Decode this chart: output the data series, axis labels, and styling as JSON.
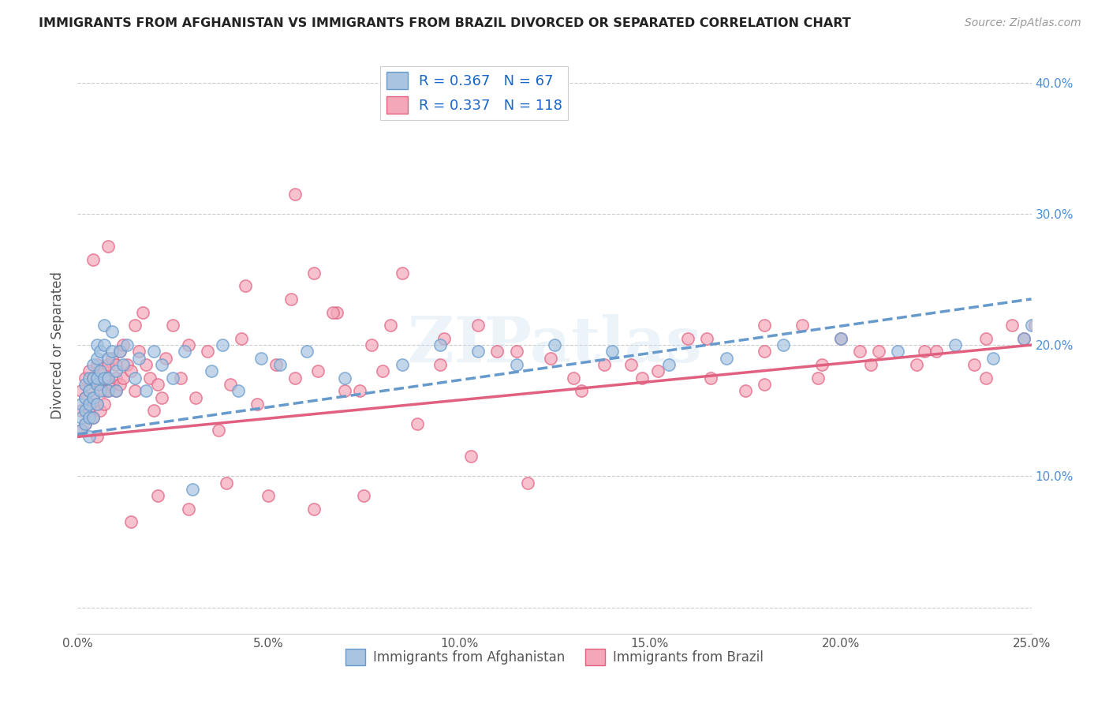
{
  "title": "IMMIGRANTS FROM AFGHANISTAN VS IMMIGRANTS FROM BRAZIL DIVORCED OR SEPARATED CORRELATION CHART",
  "source": "Source: ZipAtlas.com",
  "ylabel": "Divorced or Separated",
  "xlim": [
    0.0,
    0.25
  ],
  "ylim": [
    -0.02,
    0.42
  ],
  "xticks": [
    0.0,
    0.05,
    0.1,
    0.15,
    0.2,
    0.25
  ],
  "yticks": [
    0.0,
    0.1,
    0.2,
    0.3,
    0.4
  ],
  "xtick_labels": [
    "0.0%",
    "5.0%",
    "10.0%",
    "15.0%",
    "20.0%",
    "25.0%"
  ],
  "ytick_right_labels": [
    "",
    "10.0%",
    "20.0%",
    "30.0%",
    "40.0%"
  ],
  "afghanistan_color": "#a8c4e0",
  "brazil_color": "#f4a7b9",
  "afghanistan_edge": "#6699cc",
  "brazil_edge": "#e06080",
  "afghanistan_R": 0.367,
  "afghanistan_N": 67,
  "brazil_R": 0.337,
  "brazil_N": 118,
  "trendline_afghanistan_color": "#6699cc",
  "trendline_brazil_color": "#e06080",
  "watermark": "ZIPatlas",
  "legend_label_1": "Immigrants from Afghanistan",
  "legend_label_2": "Immigrants from Brazil",
  "afghanistan_x": [
    0.001,
    0.001,
    0.001,
    0.002,
    0.002,
    0.002,
    0.002,
    0.003,
    0.003,
    0.003,
    0.003,
    0.003,
    0.004,
    0.004,
    0.004,
    0.004,
    0.005,
    0.005,
    0.005,
    0.005,
    0.005,
    0.006,
    0.006,
    0.006,
    0.007,
    0.007,
    0.007,
    0.008,
    0.008,
    0.008,
    0.009,
    0.009,
    0.01,
    0.01,
    0.011,
    0.012,
    0.013,
    0.015,
    0.016,
    0.018,
    0.02,
    0.022,
    0.025,
    0.028,
    0.03,
    0.035,
    0.038,
    0.042,
    0.048,
    0.053,
    0.06,
    0.07,
    0.085,
    0.095,
    0.105,
    0.115,
    0.125,
    0.14,
    0.155,
    0.17,
    0.185,
    0.2,
    0.215,
    0.23,
    0.24,
    0.248,
    0.25
  ],
  "afghanistan_y": [
    0.145,
    0.155,
    0.135,
    0.16,
    0.14,
    0.15,
    0.17,
    0.13,
    0.155,
    0.175,
    0.165,
    0.145,
    0.175,
    0.16,
    0.185,
    0.145,
    0.19,
    0.17,
    0.155,
    0.2,
    0.175,
    0.195,
    0.165,
    0.18,
    0.2,
    0.175,
    0.215,
    0.19,
    0.165,
    0.175,
    0.195,
    0.21,
    0.18,
    0.165,
    0.195,
    0.185,
    0.2,
    0.175,
    0.19,
    0.165,
    0.195,
    0.185,
    0.175,
    0.195,
    0.09,
    0.18,
    0.2,
    0.165,
    0.19,
    0.185,
    0.195,
    0.175,
    0.185,
    0.2,
    0.195,
    0.185,
    0.2,
    0.195,
    0.185,
    0.19,
    0.2,
    0.205,
    0.195,
    0.2,
    0.19,
    0.205,
    0.215
  ],
  "brazil_x": [
    0.001,
    0.001,
    0.001,
    0.002,
    0.002,
    0.002,
    0.003,
    0.003,
    0.003,
    0.004,
    0.004,
    0.004,
    0.005,
    0.005,
    0.005,
    0.005,
    0.006,
    0.006,
    0.007,
    0.007,
    0.007,
    0.008,
    0.008,
    0.008,
    0.009,
    0.009,
    0.01,
    0.01,
    0.01,
    0.011,
    0.011,
    0.012,
    0.012,
    0.013,
    0.014,
    0.015,
    0.015,
    0.016,
    0.017,
    0.018,
    0.019,
    0.02,
    0.021,
    0.022,
    0.023,
    0.025,
    0.027,
    0.029,
    0.031,
    0.034,
    0.037,
    0.04,
    0.043,
    0.047,
    0.052,
    0.057,
    0.063,
    0.07,
    0.077,
    0.085,
    0.095,
    0.105,
    0.115,
    0.13,
    0.145,
    0.16,
    0.175,
    0.19,
    0.205,
    0.22,
    0.235,
    0.248,
    0.252,
    0.245,
    0.238,
    0.225,
    0.21,
    0.195,
    0.18,
    0.165,
    0.148,
    0.132,
    0.118,
    0.103,
    0.089,
    0.075,
    0.062,
    0.05,
    0.039,
    0.029,
    0.021,
    0.014,
    0.008,
    0.004,
    0.044,
    0.056,
    0.068,
    0.082,
    0.096,
    0.11,
    0.124,
    0.138,
    0.152,
    0.166,
    0.18,
    0.194,
    0.208,
    0.222,
    0.238,
    0.251,
    0.253,
    0.2,
    0.18,
    0.057,
    0.062,
    0.067,
    0.074,
    0.08
  ],
  "brazil_y": [
    0.135,
    0.15,
    0.165,
    0.14,
    0.16,
    0.175,
    0.15,
    0.165,
    0.18,
    0.145,
    0.16,
    0.175,
    0.13,
    0.155,
    0.17,
    0.185,
    0.15,
    0.17,
    0.165,
    0.18,
    0.155,
    0.185,
    0.165,
    0.175,
    0.19,
    0.17,
    0.185,
    0.165,
    0.175,
    0.195,
    0.17,
    0.2,
    0.175,
    0.185,
    0.18,
    0.215,
    0.165,
    0.195,
    0.225,
    0.185,
    0.175,
    0.15,
    0.17,
    0.16,
    0.19,
    0.215,
    0.175,
    0.2,
    0.16,
    0.195,
    0.135,
    0.17,
    0.205,
    0.155,
    0.185,
    0.175,
    0.18,
    0.165,
    0.2,
    0.255,
    0.185,
    0.215,
    0.195,
    0.175,
    0.185,
    0.205,
    0.165,
    0.215,
    0.195,
    0.185,
    0.185,
    0.205,
    0.195,
    0.215,
    0.175,
    0.195,
    0.195,
    0.185,
    0.215,
    0.205,
    0.175,
    0.165,
    0.095,
    0.115,
    0.14,
    0.085,
    0.075,
    0.085,
    0.095,
    0.075,
    0.085,
    0.065,
    0.275,
    0.265,
    0.245,
    0.235,
    0.225,
    0.215,
    0.205,
    0.195,
    0.19,
    0.185,
    0.18,
    0.175,
    0.17,
    0.175,
    0.185,
    0.195,
    0.205,
    0.215,
    0.195,
    0.205,
    0.195,
    0.315,
    0.255,
    0.225,
    0.165,
    0.18
  ],
  "trendline_af_x0": 0.0,
  "trendline_af_y0": 0.132,
  "trendline_af_x1": 0.25,
  "trendline_af_y1": 0.235,
  "trendline_br_x0": 0.0,
  "trendline_br_y0": 0.13,
  "trendline_br_x1": 0.25,
  "trendline_br_y1": 0.2
}
